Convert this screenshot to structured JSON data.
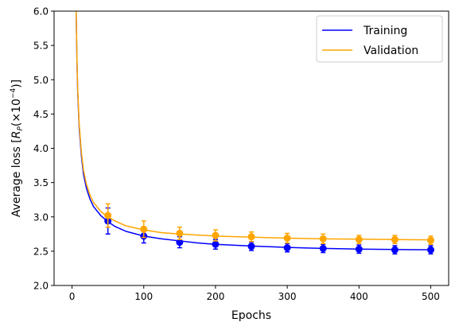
{
  "chart_data": {
    "type": "line",
    "title": "",
    "xlabel": "Epochs",
    "ylabel_main": "Average loss [",
    "ylabel_sym": "R",
    "ylabel_sub": "P",
    "ylabel_mid": "(×10",
    "ylabel_exp": "−4",
    "ylabel_end": ")]",
    "xlim": [
      -25,
      525
    ],
    "ylim": [
      2.0,
      6.0
    ],
    "xticks": [
      0,
      100,
      200,
      300,
      400,
      500
    ],
    "yticks": [
      2.0,
      2.5,
      3.0,
      3.5,
      4.0,
      4.5,
      5.0,
      5.5,
      6.0
    ],
    "xtick_labels": [
      "0",
      "100",
      "200",
      "300",
      "400",
      "500"
    ],
    "ytick_labels": [
      "2.0",
      "2.5",
      "3.0",
      "3.5",
      "4.0",
      "4.5",
      "5.0",
      "5.5",
      "6.0"
    ],
    "legend_position": "top-right",
    "series": [
      {
        "name": "Training",
        "color": "#0000ff",
        "curve_x": [
          5,
          6,
          7,
          8,
          10,
          13,
          16,
          20,
          25,
          30,
          40,
          50,
          60,
          75,
          100,
          125,
          150,
          175,
          200,
          250,
          300,
          350,
          400,
          450,
          500
        ],
        "curve_y": [
          6.6,
          5.8,
          5.2,
          4.8,
          4.3,
          3.9,
          3.62,
          3.42,
          3.26,
          3.15,
          3.02,
          2.93,
          2.86,
          2.79,
          2.72,
          2.68,
          2.65,
          2.62,
          2.6,
          2.575,
          2.555,
          2.54,
          2.53,
          2.525,
          2.52
        ],
        "points_x": [
          50,
          100,
          150,
          200,
          250,
          300,
          350,
          400,
          450,
          500
        ],
        "points_y": [
          2.94,
          2.72,
          2.63,
          2.6,
          2.57,
          2.55,
          2.54,
          2.53,
          2.52,
          2.52
        ],
        "errors": [
          0.19,
          0.1,
          0.08,
          0.07,
          0.06,
          0.06,
          0.06,
          0.06,
          0.06,
          0.06
        ]
      },
      {
        "name": "Validation",
        "color": "#ffa500",
        "curve_x": [
          5,
          6,
          7,
          8,
          10,
          13,
          16,
          20,
          25,
          30,
          40,
          50,
          60,
          75,
          100,
          125,
          150,
          175,
          200,
          250,
          300,
          350,
          400,
          450,
          500
        ],
        "curve_y": [
          6.6,
          5.85,
          5.25,
          4.85,
          4.35,
          3.95,
          3.68,
          3.48,
          3.32,
          3.21,
          3.08,
          3.0,
          2.94,
          2.87,
          2.81,
          2.77,
          2.75,
          2.735,
          2.72,
          2.705,
          2.69,
          2.68,
          2.675,
          2.67,
          2.665
        ],
        "points_x": [
          50,
          100,
          150,
          200,
          250,
          300,
          350,
          400,
          450,
          500
        ],
        "points_y": [
          3.02,
          2.82,
          2.76,
          2.73,
          2.71,
          2.69,
          2.68,
          2.67,
          2.67,
          2.66
        ],
        "errors": [
          0.17,
          0.12,
          0.09,
          0.08,
          0.07,
          0.07,
          0.07,
          0.06,
          0.06,
          0.06
        ]
      }
    ]
  }
}
